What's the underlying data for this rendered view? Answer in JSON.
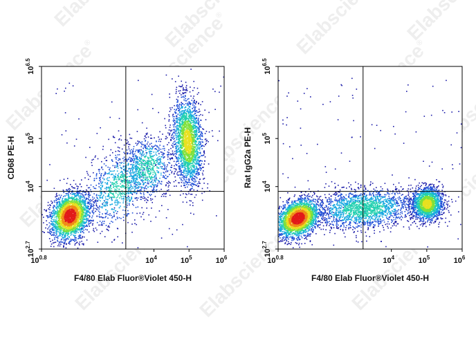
{
  "watermark": "Elabscience",
  "watermark_mark": "®",
  "colormap": [
    "#1a1aa8",
    "#1f4fd8",
    "#18a8e0",
    "#22d0b0",
    "#7ee03a",
    "#e8e020",
    "#f08a18",
    "#e21a1a"
  ],
  "gate_color": "#000000",
  "chart_data": [
    {
      "type": "scatter",
      "subtype": "density-dot-plot",
      "xlabel": "F4/80  Elab Fluor®Violet 450-H",
      "ylabel": "CD68 PE-H",
      "xscale": "log",
      "yscale": "log",
      "xlim_exp": [
        0.8,
        6
      ],
      "ylim_exp": [
        2.7,
        6.5
      ],
      "xticks": [
        {
          "base": "10",
          "exp": "0.8",
          "value": 0.8
        },
        {
          "base": "10",
          "exp": "4",
          "value": 4
        },
        {
          "base": "10",
          "exp": "5",
          "value": 5
        },
        {
          "base": "10",
          "exp": "6",
          "value": 6
        }
      ],
      "yticks": [
        {
          "base": "10",
          "exp": "2.7",
          "value": 2.7
        },
        {
          "base": "10",
          "exp": "4",
          "value": 4
        },
        {
          "base": "10",
          "exp": "5",
          "value": 5
        },
        {
          "base": "10",
          "exp": "6.5",
          "value": 6.5
        }
      ],
      "gate_x_exp": 3.2,
      "gate_y_exp": 3.9,
      "populations": [
        {
          "cx": 1.6,
          "cy": 3.4,
          "sx": 0.28,
          "sy": 0.22,
          "n": 2600,
          "rot": 0.5,
          "peak": 1.0
        },
        {
          "cx": 3.0,
          "cy": 4.0,
          "sx": 0.55,
          "sy": 0.35,
          "n": 900,
          "rot": 0.6,
          "peak": 0.3
        },
        {
          "cx": 3.8,
          "cy": 4.4,
          "sx": 0.35,
          "sy": 0.3,
          "n": 700,
          "rot": 0.4,
          "peak": 0.35
        },
        {
          "cx": 4.95,
          "cy": 4.95,
          "sx": 0.2,
          "sy": 0.45,
          "n": 2200,
          "rot": 0.1,
          "peak": 0.6
        }
      ]
    },
    {
      "type": "scatter",
      "subtype": "density-dot-plot",
      "xlabel": "F4/80  Elab Fluor®Violet 450-H",
      "ylabel": "Rat IgG2a PE-H",
      "xscale": "log",
      "yscale": "log",
      "xlim_exp": [
        0.8,
        6
      ],
      "ylim_exp": [
        2.7,
        6.5
      ],
      "xticks": [
        {
          "base": "10",
          "exp": "0.8",
          "value": 0.8
        },
        {
          "base": "10",
          "exp": "4",
          "value": 4
        },
        {
          "base": "10",
          "exp": "5",
          "value": 5
        },
        {
          "base": "10",
          "exp": "6",
          "value": 6
        }
      ],
      "yticks": [
        {
          "base": "10",
          "exp": "2.7",
          "value": 2.7
        },
        {
          "base": "10",
          "exp": "4",
          "value": 4
        },
        {
          "base": "10",
          "exp": "5",
          "value": 5
        },
        {
          "base": "10",
          "exp": "6.5",
          "value": 6.5
        }
      ],
      "gate_x_exp": 3.2,
      "gate_y_exp": 3.9,
      "populations": [
        {
          "cx": 1.35,
          "cy": 3.35,
          "sx": 0.3,
          "sy": 0.18,
          "n": 2600,
          "rot": 0.3,
          "peak": 1.0
        },
        {
          "cx": 3.2,
          "cy": 3.55,
          "sx": 0.7,
          "sy": 0.2,
          "n": 1800,
          "rot": 0.05,
          "peak": 0.35
        },
        {
          "cx": 5.0,
          "cy": 3.65,
          "sx": 0.22,
          "sy": 0.17,
          "n": 1700,
          "rot": 0.0,
          "peak": 0.6
        }
      ]
    }
  ]
}
